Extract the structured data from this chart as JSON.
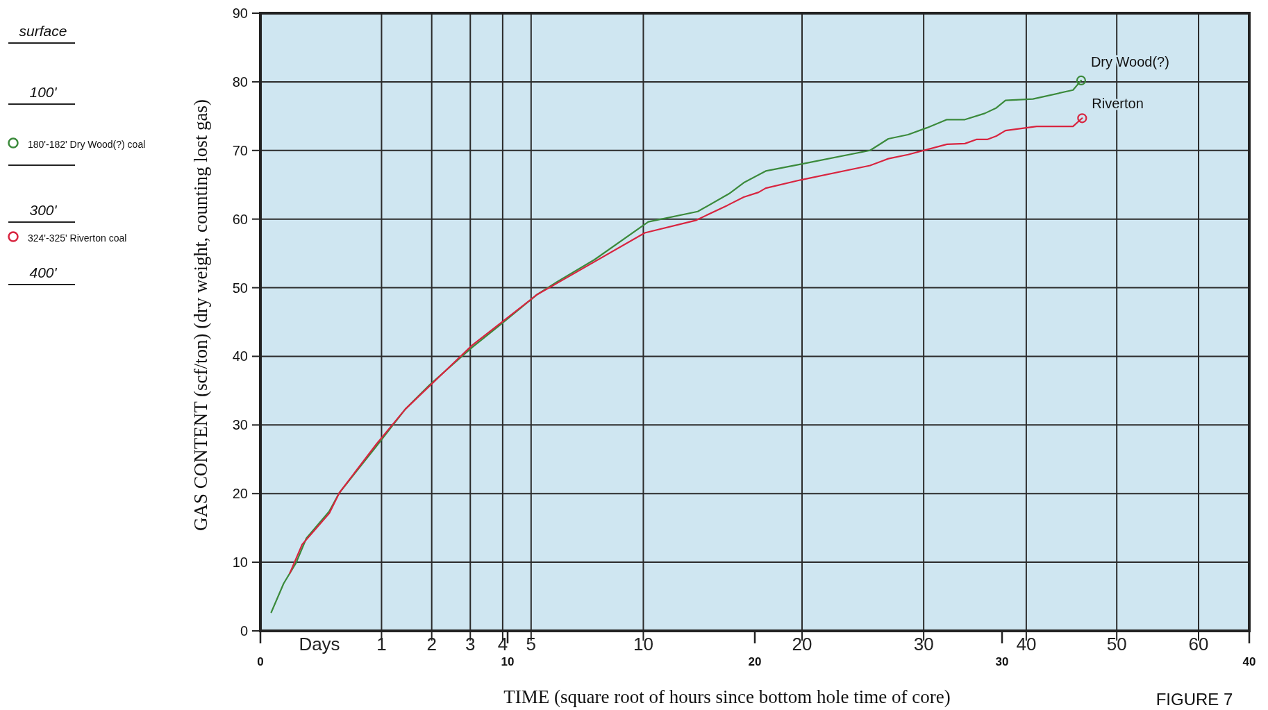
{
  "chart_data": {
    "type": "line",
    "xlabel": "TIME (square root of hours since bottom hole time of core)",
    "ylabel": "GAS CONTENT (scf/ton) (dry weight, counting lost gas)",
    "ref_lines": [
      {
        "axis": "x",
        "value": 4.9
      },
      {
        "axis": "x",
        "value": 6.93
      },
      {
        "axis": "x",
        "value": 8.49
      },
      {
        "axis": "x",
        "value": 9.8
      },
      {
        "axis": "x",
        "value": 10.95
      },
      {
        "axis": "x",
        "value": 15.49
      },
      {
        "axis": "x",
        "value": 21.91
      },
      {
        "axis": "x",
        "value": 26.83
      },
      {
        "axis": "x",
        "value": 30.98
      },
      {
        "axis": "x",
        "value": 34.64
      },
      {
        "axis": "x",
        "value": 37.95
      }
    ],
    "xlim": [
      0,
      40
    ],
    "xticks": [
      0,
      10,
      20,
      30,
      40
    ],
    "ylim": [
      0,
      90
    ],
    "yticks": [
      0,
      10,
      20,
      30,
      40,
      50,
      60,
      70,
      80,
      90
    ],
    "grid": "y",
    "line_style": "solid",
    "marker": "none",
    "series": [
      {
        "name": "Dry Wood(?)",
        "color": "#3b8a3b",
        "x": [
          0.44,
          0.94,
          1.44,
          1.86,
          2.78,
          3.19,
          4.69,
          5.86,
          6.86,
          8.56,
          9.74,
          11.19,
          12.02,
          13.52,
          15.69,
          17.69,
          18.96,
          19.55,
          20.44,
          21.85,
          24.66,
          25.4,
          26.2,
          26.96,
          27.77,
          28.5,
          29.3,
          29.77,
          30.14,
          31.25,
          32.87,
          33.2
        ],
        "values": [
          2.7,
          6.9,
          9.9,
          13.5,
          17.4,
          20.1,
          26.9,
          32.3,
          35.9,
          41.3,
          44.7,
          49.0,
          50.9,
          54.1,
          59.6,
          61.1,
          63.7,
          65.3,
          67.0,
          68.0,
          70.0,
          71.7,
          72.3,
          73.3,
          74.5,
          74.5,
          75.4,
          76.2,
          77.3,
          77.5,
          78.8,
          80.2
        ]
      },
      {
        "name": "Riverton",
        "color": "#d8243f",
        "x": [
          1.19,
          1.69,
          2.78,
          3.19,
          4.69,
          5.86,
          8.56,
          9.74,
          11.19,
          12.02,
          15.55,
          17.6,
          18.89,
          19.55,
          20.15,
          20.44,
          21.85,
          24.66,
          25.4,
          26.2,
          27.77,
          28.5,
          28.96,
          29.4,
          29.77,
          30.14,
          31.4,
          32.87,
          33.24
        ],
        "values": [
          8.4,
          12.6,
          17.1,
          20.1,
          27.2,
          32.3,
          41.6,
          44.9,
          49.0,
          50.7,
          58.0,
          59.8,
          62.0,
          63.2,
          63.9,
          64.5,
          65.7,
          67.8,
          68.8,
          69.4,
          70.9,
          71.0,
          71.6,
          71.6,
          72.1,
          72.9,
          73.5,
          73.5,
          74.7
        ]
      }
    ],
    "annotations": [
      "surface",
      "100'",
      "180'-182'  Dry Wood(?) coal",
      "300'",
      "324'-325'  Riverton coal",
      "400'",
      "Days",
      "1",
      "2",
      "3",
      "4",
      "5",
      "10",
      "20",
      "30",
      "40",
      "50",
      "60",
      "FIGURE 7"
    ]
  }
}
